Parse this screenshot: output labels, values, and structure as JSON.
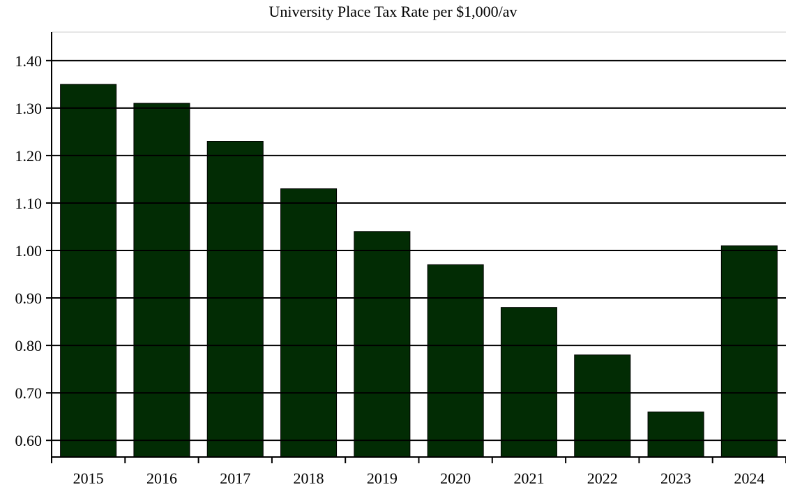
{
  "chart_data": {
    "type": "bar",
    "title": "University Place Tax Rate per $1,000/av",
    "xlabel": "",
    "ylabel": "",
    "categories": [
      "2015",
      "2016",
      "2017",
      "2018",
      "2019",
      "2020",
      "2021",
      "2022",
      "2023",
      "2024"
    ],
    "values": [
      1.35,
      1.31,
      1.23,
      1.13,
      1.04,
      0.97,
      0.88,
      0.78,
      0.66,
      1.01
    ],
    "yticks": [
      "0.60",
      "0.70",
      "0.80",
      "0.90",
      "1.00",
      "1.10",
      "1.20",
      "1.30",
      "1.40"
    ],
    "ylim": [
      0.565,
      1.46
    ],
    "grid": true,
    "legend": "none",
    "bar_color": "#022c04",
    "grid_color": "#000000"
  }
}
